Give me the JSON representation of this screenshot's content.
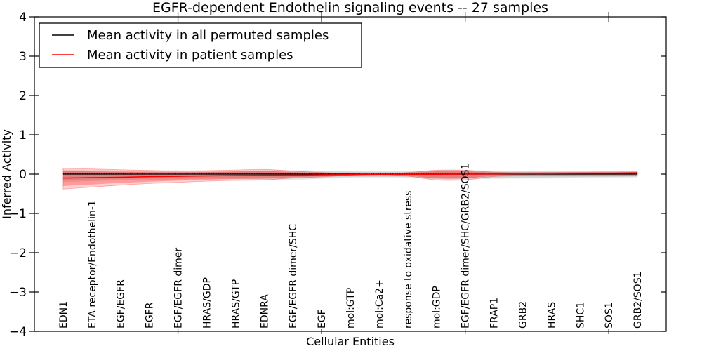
{
  "title": "EGFR-dependent Endothelin signaling events -- 27 samples",
  "chart_data": {
    "type": "line",
    "title": "EGFR-dependent Endothelin signaling events -- 27 samples",
    "xlabel": "Cellular Entities",
    "ylabel": "Inferred Activity",
    "ylim": [
      -4,
      4
    ],
    "yticks": [
      4,
      3,
      2,
      1,
      0,
      -1,
      -2,
      -3,
      -4
    ],
    "x_major_tick_indices": [
      4,
      9,
      14,
      19
    ],
    "grid": false,
    "legend_position": "upper-left",
    "categories": [
      "EDN1",
      "ETA receptor/Endothelin-1",
      "EGF/EGFR",
      "EGFR",
      "EGF/EGFR dimer",
      "HRAS/GDP",
      "HRAS/GTP",
      "EDNRA",
      "EGF/EGFR dimer/SHC",
      "EGF",
      "mol:GTP",
      "mol:Ca2+",
      "response to oxidative stress",
      "mol:GDP",
      "EGF/EGFR dimer/SHC/GRB2/SOS1",
      "FRAP1",
      "GRB2",
      "HRAS",
      "SHC1",
      "SOS1",
      "GRB2/SOS1"
    ],
    "series": [
      {
        "name": "Mean activity in all permuted samples",
        "line_color": "#000000",
        "band_color": "#d9d9d9",
        "mean": [
          0,
          0,
          0,
          0,
          0,
          0,
          0,
          0,
          0,
          0,
          0,
          0,
          0,
          0,
          0,
          0,
          0,
          0,
          0,
          0,
          0
        ],
        "band_upper": [
          0.11,
          0.1,
          0.09,
          0.085,
          0.08,
          0.08,
          0.085,
          0.1,
          0.1,
          0.09,
          0.08,
          0.075,
          0.08,
          0.1,
          0.1,
          0.09,
          0.085,
          0.085,
          0.08,
          0.08,
          0.07
        ],
        "band_lower": [
          -0.2,
          -0.18,
          -0.16,
          -0.15,
          -0.14,
          -0.13,
          -0.13,
          -0.15,
          -0.15,
          -0.12,
          -0.1,
          -0.095,
          -0.1,
          -0.13,
          -0.13,
          -0.12,
          -0.115,
          -0.11,
          -0.1,
          -0.095,
          -0.085
        ]
      },
      {
        "name": "Mean activity in patient samples",
        "line_color": "#ff0000",
        "band_color": "#f4a0a0",
        "mean": [
          -0.1,
          -0.09,
          -0.08,
          -0.065,
          -0.055,
          -0.045,
          -0.035,
          -0.03,
          -0.025,
          -0.018,
          -0.012,
          -0.008,
          -0.006,
          -0.003,
          0.0,
          0.005,
          0.01,
          0.015,
          0.02,
          0.024,
          0.03
        ],
        "band_upper": [
          0.15,
          0.13,
          0.11,
          0.095,
          0.085,
          0.09,
          0.105,
          0.12,
          0.08,
          0.04,
          0.015,
          0.005,
          0.04,
          0.1,
          0.1,
          0.05,
          0.04,
          0.045,
          0.05,
          0.055,
          0.06
        ],
        "band_lower": [
          -0.38,
          -0.33,
          -0.28,
          -0.24,
          -0.21,
          -0.18,
          -0.16,
          -0.15,
          -0.1,
          -0.07,
          -0.03,
          -0.01,
          -0.05,
          -0.15,
          -0.15,
          -0.06,
          -0.045,
          -0.04,
          -0.038,
          -0.035,
          -0.03
        ]
      }
    ]
  }
}
